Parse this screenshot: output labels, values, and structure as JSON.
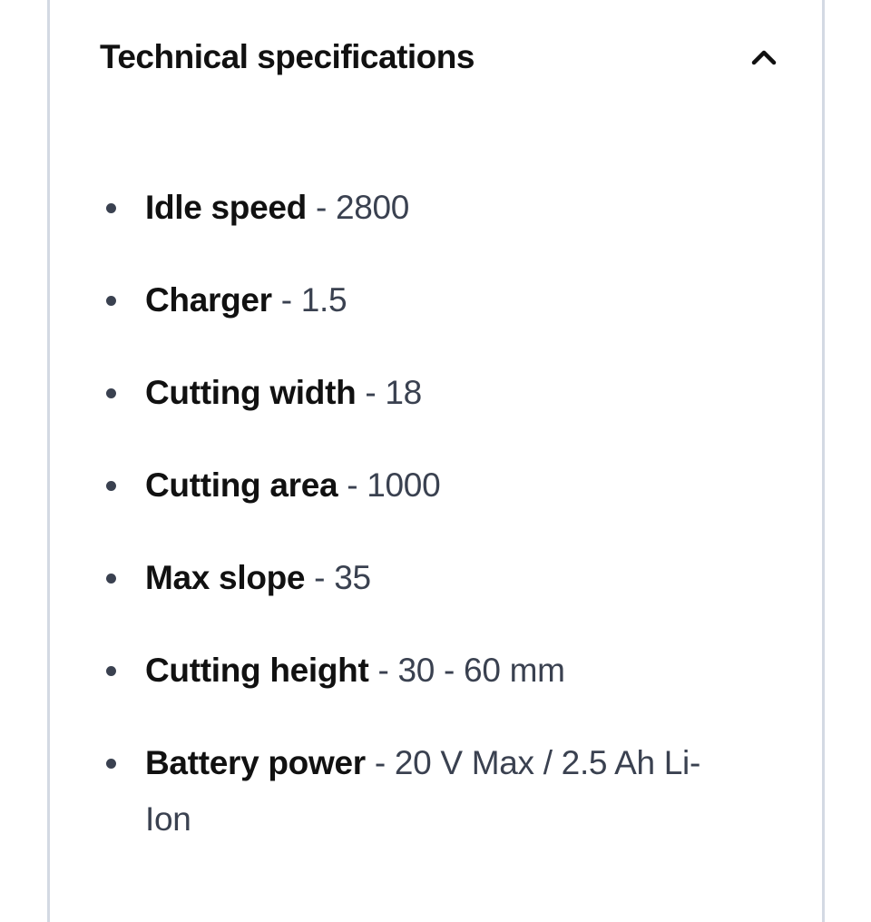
{
  "section": {
    "title": "Technical specifications",
    "expanded": true,
    "toggle_icon": "chevron-up-icon",
    "separator": " - ",
    "specs": [
      {
        "label": "Idle speed",
        "value": "2800"
      },
      {
        "label": "Charger",
        "value": "1.5"
      },
      {
        "label": "Cutting width",
        "value": "18"
      },
      {
        "label": "Cutting area",
        "value": "1000"
      },
      {
        "label": "Max slope",
        "value": "35"
      },
      {
        "label": "Cutting height",
        "value": "30 - 60 mm"
      },
      {
        "label": "Battery power",
        "value": "20 V Max / 2.5 Ah Li-Ion"
      }
    ]
  },
  "colors": {
    "border": "#d3d9e3",
    "label": "#111111",
    "value": "#3a4150"
  }
}
